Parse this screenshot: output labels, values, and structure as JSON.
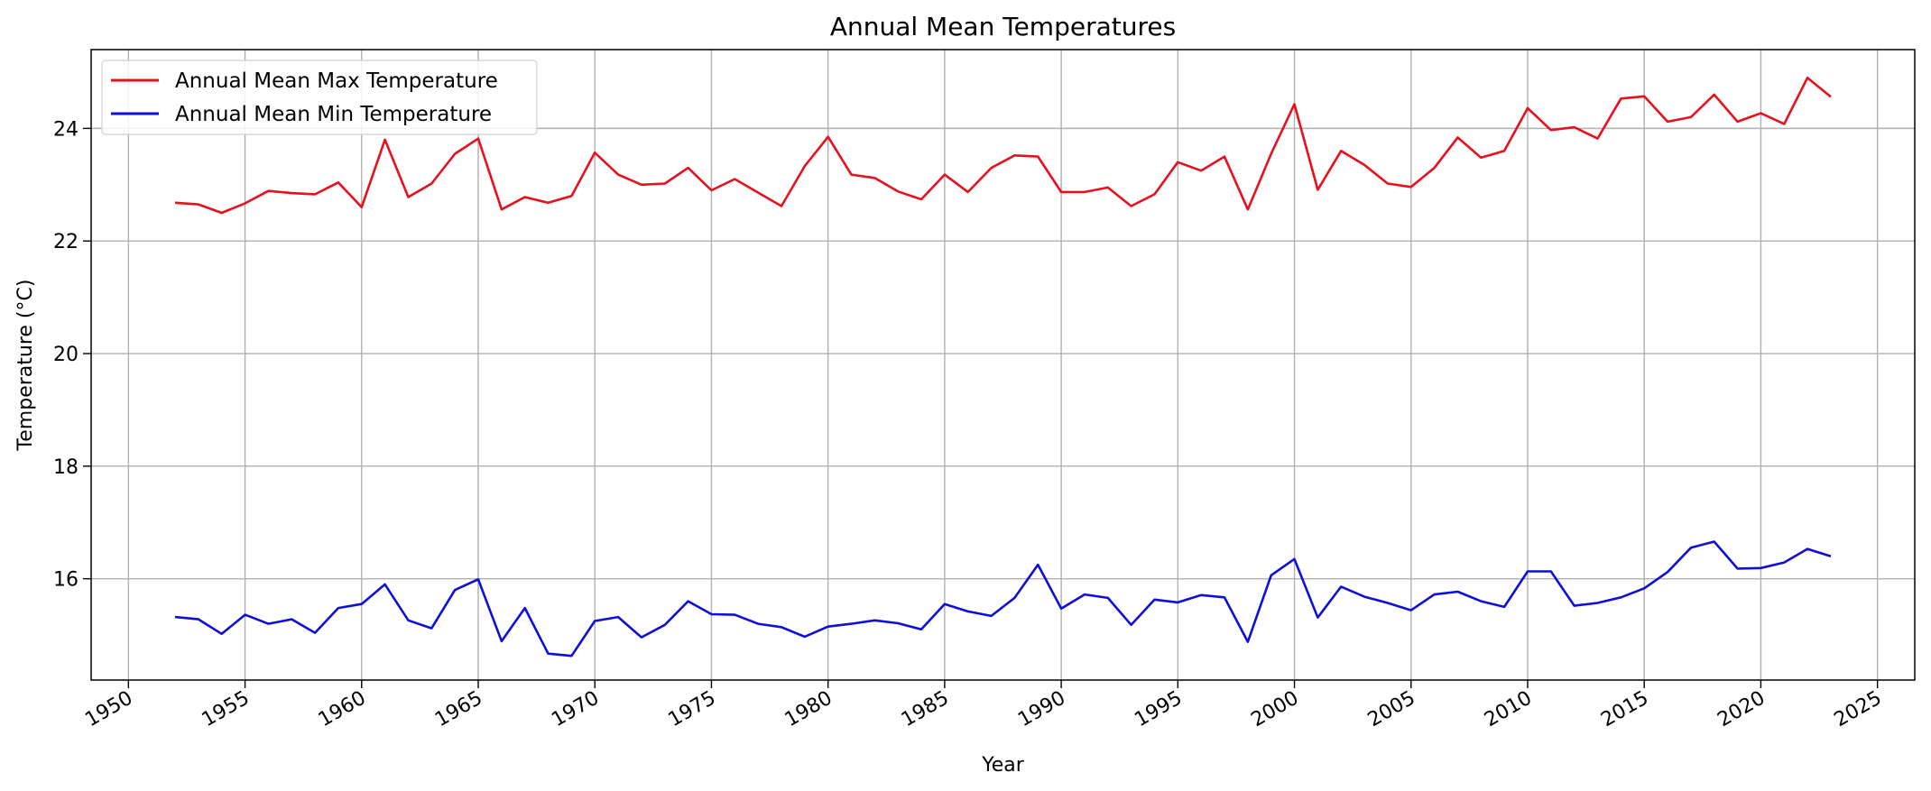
{
  "chart_data": {
    "type": "line",
    "title": "Annual Mean Temperatures",
    "xlabel": "Year",
    "ylabel": "Temperature (°C)",
    "xlim": [
      1948.4,
      2026.6
    ],
    "ylim": [
      14.2,
      25.4
    ],
    "x_ticks": [
      1950,
      1955,
      1960,
      1965,
      1970,
      1975,
      1980,
      1985,
      1990,
      1995,
      2000,
      2005,
      2010,
      2015,
      2020,
      2025
    ],
    "y_ticks": [
      16,
      18,
      20,
      22,
      24
    ],
    "grid": true,
    "legend_position": "upper-left",
    "x": [
      1952,
      1953,
      1954,
      1955,
      1956,
      1957,
      1958,
      1959,
      1960,
      1961,
      1962,
      1963,
      1964,
      1965,
      1966,
      1967,
      1968,
      1969,
      1970,
      1971,
      1972,
      1973,
      1974,
      1975,
      1976,
      1977,
      1978,
      1979,
      1980,
      1981,
      1982,
      1983,
      1984,
      1985,
      1986,
      1987,
      1988,
      1989,
      1990,
      1991,
      1992,
      1993,
      1994,
      1995,
      1996,
      1997,
      1998,
      1999,
      2000,
      2001,
      2002,
      2003,
      2004,
      2005,
      2006,
      2007,
      2008,
      2009,
      2010,
      2011,
      2012,
      2013,
      2014,
      2015,
      2016,
      2017,
      2018,
      2019,
      2020,
      2021,
      2022,
      2023
    ],
    "series": [
      {
        "name": "Annual Mean Max Temperature",
        "color": "#e8101e",
        "values": [
          22.68,
          22.65,
          22.5,
          22.67,
          22.89,
          22.85,
          22.83,
          23.04,
          22.6,
          23.8,
          22.78,
          23.02,
          23.55,
          23.82,
          22.56,
          22.78,
          22.68,
          22.8,
          23.57,
          23.18,
          23.0,
          23.02,
          23.3,
          22.9,
          23.1,
          22.86,
          22.62,
          23.33,
          23.85,
          23.18,
          23.12,
          22.88,
          22.74,
          23.18,
          22.87,
          23.3,
          23.52,
          23.5,
          22.87,
          22.87,
          22.95,
          22.62,
          22.83,
          23.4,
          23.25,
          23.5,
          22.56,
          23.55,
          24.43,
          22.91,
          23.6,
          23.35,
          23.02,
          22.96,
          23.3,
          23.84,
          23.48,
          23.6,
          24.36,
          23.97,
          24.02,
          23.82,
          24.53,
          24.57,
          24.12,
          24.2,
          24.6,
          24.12,
          24.27,
          24.08,
          24.9,
          24.56
        ]
      },
      {
        "name": "Annual Mean Min Temperature",
        "color": "#0f0fd9",
        "values": [
          15.32,
          15.28,
          15.02,
          15.36,
          15.2,
          15.28,
          15.04,
          15.48,
          15.55,
          15.9,
          15.26,
          15.12,
          15.8,
          15.99,
          14.89,
          15.48,
          14.67,
          14.63,
          15.25,
          15.32,
          14.96,
          15.18,
          15.6,
          15.37,
          15.36,
          15.2,
          15.14,
          14.97,
          15.15,
          15.2,
          15.26,
          15.21,
          15.1,
          15.55,
          15.42,
          15.34,
          15.66,
          16.25,
          15.47,
          15.72,
          15.66,
          15.18,
          15.63,
          15.58,
          15.71,
          15.67,
          14.88,
          16.06,
          16.35,
          15.31,
          15.86,
          15.68,
          15.57,
          15.44,
          15.72,
          15.77,
          15.6,
          15.5,
          16.13,
          16.13,
          15.52,
          15.57,
          15.67,
          15.83,
          16.12,
          16.55,
          16.66,
          16.18,
          16.19,
          16.29,
          16.53,
          16.4
        ]
      }
    ]
  }
}
